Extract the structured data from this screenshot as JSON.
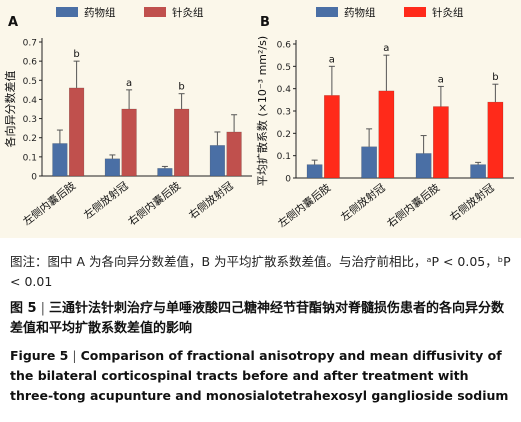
{
  "colors": {
    "panelA": {
      "drug": "#4a6fa5",
      "acu": "#c0504d"
    },
    "panelB": {
      "drug": "#4a6fa5",
      "acu": "#ff2a1a"
    },
    "error": "#555555",
    "background": "#fbf7ea"
  },
  "chart_data": [
    {
      "type": "bar",
      "panel": "A",
      "title": "A",
      "ylabel": "各向异分数差值",
      "ylim": [
        0,
        0.7
      ],
      "yticks": [
        "0",
        "0.1",
        "0.2",
        "0.3",
        "0.4",
        "0.5",
        "0.6",
        "0.7"
      ],
      "categories": [
        "左侧内囊后肢",
        "左侧放射冠",
        "右侧内囊后肢",
        "右侧放射冠"
      ],
      "series": [
        {
          "name": "药物组",
          "values": [
            0.17,
            0.09,
            0.04,
            0.16
          ],
          "errors": [
            0.07,
            0.02,
            0.01,
            0.07
          ],
          "sig": [
            "",
            "",
            "",
            ""
          ]
        },
        {
          "name": "针灸组",
          "values": [
            0.46,
            0.35,
            0.35,
            0.23
          ],
          "errors": [
            0.14,
            0.1,
            0.08,
            0.09
          ],
          "sig": [
            "b",
            "a",
            "b",
            ""
          ]
        }
      ],
      "legend": "top-right"
    },
    {
      "type": "bar",
      "panel": "B",
      "title": "B",
      "ylabel": "平均扩散系数 (×10⁻³ mm²/s)",
      "ylim": [
        0,
        0.6
      ],
      "yticks": [
        "0",
        "0.1",
        "0.2",
        "0.3",
        "0.4",
        "0.5",
        "0.6"
      ],
      "categories": [
        "左侧内囊后肢",
        "左侧放射冠",
        "右侧内囊后肢",
        "右侧放射冠"
      ],
      "series": [
        {
          "name": "药物组",
          "values": [
            0.06,
            0.14,
            0.11,
            0.06
          ],
          "errors": [
            0.02,
            0.08,
            0.08,
            0.01
          ],
          "sig": [
            "",
            "",
            "",
            ""
          ]
        },
        {
          "name": "针灸组",
          "values": [
            0.37,
            0.39,
            0.32,
            0.34
          ],
          "errors": [
            0.13,
            0.16,
            0.09,
            0.08
          ],
          "sig": [
            "a",
            "a",
            "a",
            "b"
          ]
        }
      ],
      "legend": "top-right"
    }
  ],
  "caption": {
    "note": "图注：图中 A 为各向异分数差值，B 为平均扩散系数差值。与治疗前相比，ᵃP < 0.05，ᵇP < 0.01",
    "figure_label_cn": "图 5",
    "title_cn": "三通针法针刺治疗与单唾液酸四己糖神经节苷酯钠对脊髓损伤患者的各向异分数差值和平均扩散系数差值的影响",
    "figure_label_en": "Figure 5",
    "title_en": "Comparison of fractional anisotropy and mean diffusivity of the bilateral corticospinal tracts before and after treatment with three-tong acupunture and monosialotetrahexosyl ganglioside sodium"
  }
}
